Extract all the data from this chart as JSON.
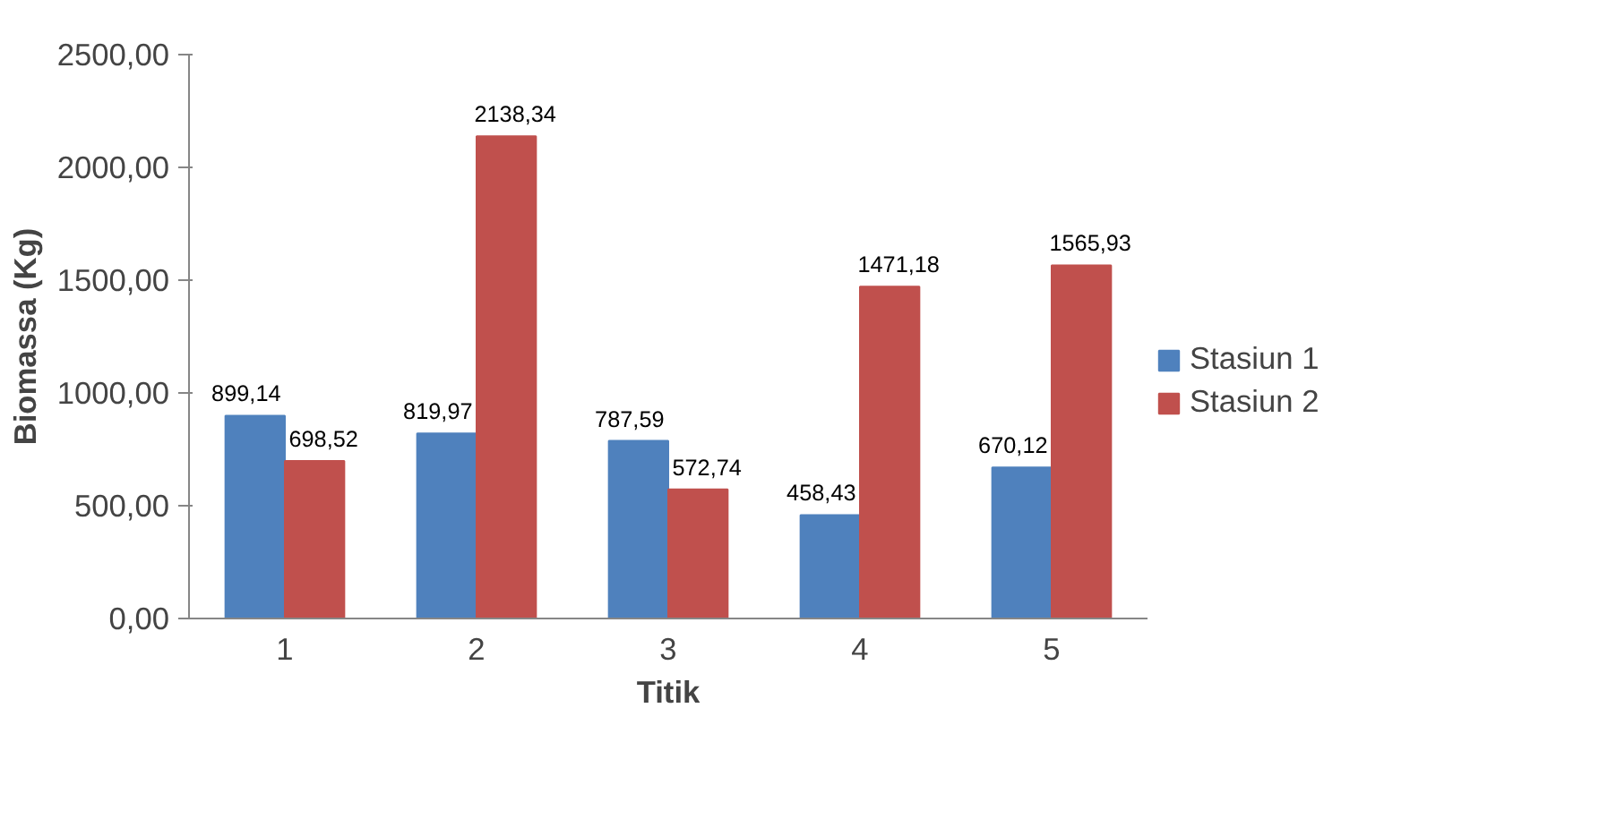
{
  "chart_data": {
    "type": "bar",
    "xlabel": "Titik",
    "ylabel": "Biomassa (Kg)",
    "categories": [
      "1",
      "2",
      "3",
      "4",
      "5"
    ],
    "series": [
      {
        "name": "Stasiun 1",
        "color": "#4f81bd",
        "values": [
          899.14,
          819.97,
          787.59,
          458.43,
          670.12
        ],
        "value_labels": [
          "899,14",
          "819,97",
          "787,59",
          "458,43",
          "670,12"
        ]
      },
      {
        "name": "Stasiun 2",
        "color": "#c0504d",
        "values": [
          698.52,
          2138.34,
          572.74,
          1471.18,
          1565.93
        ],
        "value_labels": [
          "698,52",
          "2138,34",
          "572,74",
          "1471,18",
          "1565,93"
        ]
      }
    ],
    "ylim": [
      0,
      2500
    ],
    "yticks": [
      {
        "value": 0,
        "label": "0,00"
      },
      {
        "value": 500,
        "label": "500,00"
      },
      {
        "value": 1000,
        "label": "1000,00"
      },
      {
        "value": 1500,
        "label": "1500,00"
      },
      {
        "value": 2000,
        "label": "2000,00"
      },
      {
        "value": 2500,
        "label": "2500,00"
      }
    ],
    "grid": false,
    "legend": "right"
  }
}
